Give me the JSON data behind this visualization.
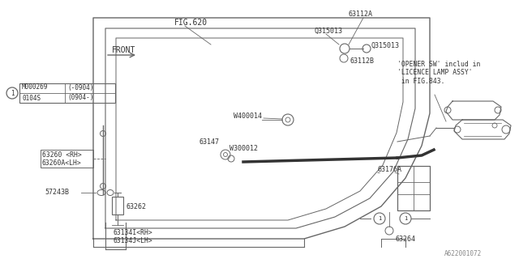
{
  "bg_color": "#ffffff",
  "fig_width": 6.4,
  "fig_height": 3.2,
  "dpi": 100,
  "lc": "#666666",
  "tc": "#333333",
  "labels": {
    "fig620": "FIG.620",
    "front": "FRONT",
    "part1a": "M000269(-0904)",
    "part1b": "0104S   (0904-)",
    "w400014": "W400014",
    "w300012": "W300012",
    "p63147": "63147",
    "p63112a": "63112A",
    "p63112b": "63112B",
    "q315013a": "Q315013",
    "q315013b": "Q315013",
    "opener_sw": "'OPENER SW' includ in\n'LICENCE LAMP ASSY'\n in FIG.843.",
    "p63260": "63260 <RH>",
    "p63260a": "63260A<LH>",
    "p57243b": "57243B",
    "p63262": "63262",
    "p63134i": "63134I<RH>",
    "p63134j": "63134J<LH>",
    "p63176a": "63176A",
    "p63264": "63264",
    "footer": "A622001072"
  }
}
